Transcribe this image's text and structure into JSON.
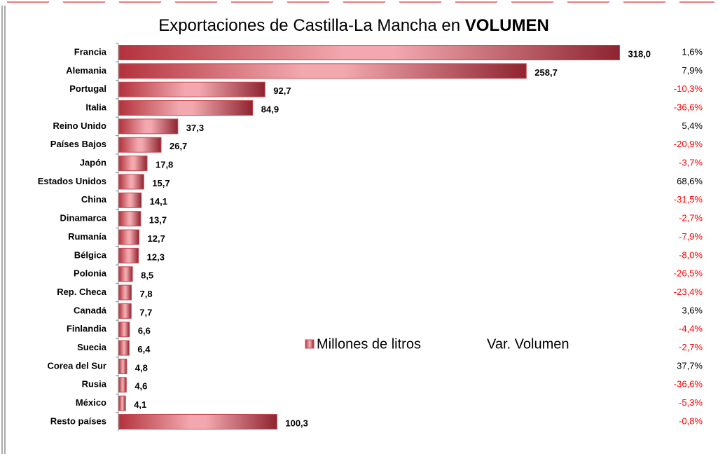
{
  "chart_data": {
    "type": "bar",
    "orientation": "horizontal",
    "title": "Exportaciones de Castilla-La Mancha en",
    "title_bold": "VOLUMEN",
    "categories": [
      "Francia",
      "Alemania",
      "Portugal",
      "Italia",
      "Reino Unido",
      "Países Bajos",
      "Japón",
      "Estados Unidos",
      "China",
      "Dinamarca",
      "Rumanía",
      "Bélgica",
      "Polonia",
      "Rep. Checa",
      "Canadá",
      "Finlandia",
      "Suecia",
      "Corea del Sur",
      "Rusia",
      "México",
      "Resto países"
    ],
    "series": [
      {
        "name": "Millones de litros",
        "color": "#c8464f",
        "values": [
          318.0,
          258.7,
          92.7,
          84.9,
          37.3,
          26.7,
          17.8,
          15.7,
          14.1,
          13.7,
          12.7,
          12.3,
          8.5,
          7.8,
          7.7,
          6.6,
          6.4,
          4.8,
          4.6,
          4.1,
          100.3
        ],
        "value_labels": [
          "318,0",
          "258,7",
          "92,7",
          "84,9",
          "37,3",
          "26,7",
          "17,8",
          "15,7",
          "14,1",
          "13,7",
          "12,7",
          "12,3",
          "8,5",
          "7,8",
          "7,7",
          "6,6",
          "6,4",
          "4,8",
          "4,6",
          "4,1",
          "100,3"
        ]
      },
      {
        "name": "Var. Volumen",
        "color": "#000000",
        "negative_color": "#ff0000",
        "values": [
          1.6,
          7.9,
          -10.3,
          -36.6,
          5.4,
          -20.9,
          -3.7,
          68.6,
          -31.5,
          -2.7,
          -7.9,
          -8.0,
          -26.5,
          -23.4,
          3.6,
          -4.4,
          -2.7,
          37.7,
          -36.6,
          -5.3,
          -0.8
        ],
        "value_labels": [
          "1,6%",
          "7,9%",
          "-10,3%",
          "-36,6%",
          "5,4%",
          "-20,9%",
          "-3,7%",
          "68,6%",
          "-31,5%",
          "-2,7%",
          "-7,9%",
          "-8,0%",
          "-26,5%",
          "-23,4%",
          "3,6%",
          "-4,4%",
          "-2,7%",
          "37,7%",
          "-36,6%",
          "-5,3%",
          "-0,8%"
        ]
      }
    ],
    "xlim": [
      0,
      320
    ]
  }
}
